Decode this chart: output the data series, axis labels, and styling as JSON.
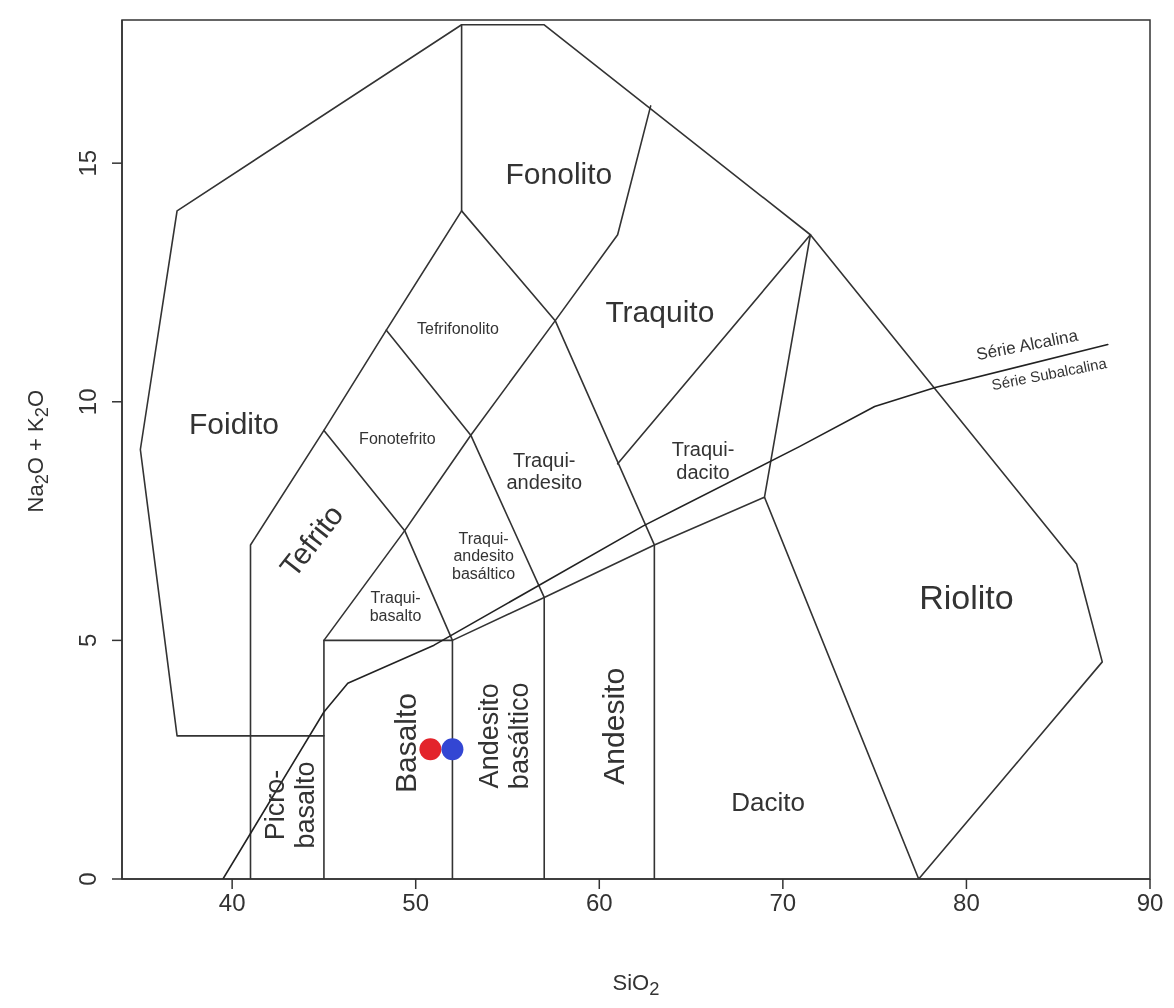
{
  "chart_data": {
    "type": "scatter",
    "xlabel": "SiO$_{2}$",
    "ylabel": "Na$_{2}$O + K$_{2}$O",
    "xlim": [
      34,
      90
    ],
    "ylim": [
      0,
      18
    ],
    "xticks": [
      40,
      50,
      60,
      70,
      80,
      90
    ],
    "yticks": [
      0,
      5,
      10,
      15
    ],
    "series": [
      {
        "type": "line",
        "color": "#333333",
        "x": [
          45,
          37,
          35,
          37,
          52.5,
          57,
          71.5,
          86,
          87.4,
          77.4
        ],
        "values": [
          3,
          3,
          9,
          14,
          17.9,
          17.9,
          13.5,
          6.6,
          4.55,
          0
        ]
      },
      {
        "type": "line",
        "color": "#333333",
        "x": [
          41,
          41,
          45,
          48.4,
          52.5,
          52.5
        ],
        "values": [
          0,
          7,
          9.4,
          11.5,
          14,
          17.9
        ]
      },
      {
        "type": "line",
        "color": "#333333",
        "x": [
          52.5,
          57.6,
          63,
          63
        ],
        "values": [
          14,
          11.7,
          7,
          0
        ]
      },
      {
        "type": "line",
        "color": "#333333",
        "x": [
          48.4,
          53,
          57,
          57
        ],
        "values": [
          11.5,
          9.3,
          5.9,
          0
        ]
      },
      {
        "type": "line",
        "color": "#333333",
        "x": [
          45,
          49.4,
          52,
          52
        ],
        "values": [
          9.4,
          7.3,
          5,
          0
        ]
      },
      {
        "type": "line",
        "color": "#333333",
        "x": [
          45,
          45,
          49.4,
          53,
          57.6,
          61,
          62.8
        ],
        "values": [
          0,
          5,
          7.3,
          9.3,
          11.7,
          13.5,
          16.2
        ]
      },
      {
        "type": "line",
        "color": "#333333",
        "x": [
          45,
          52,
          57,
          63,
          69,
          77.4
        ],
        "values": [
          5,
          5,
          5.9,
          7,
          8,
          0
        ]
      },
      {
        "type": "line",
        "color": "#333333",
        "x": [
          69,
          71.5
        ],
        "values": [
          8,
          13.5
        ]
      },
      {
        "type": "line",
        "color": "#333333",
        "x": [
          61,
          71.5
        ],
        "values": [
          8.7,
          13.5
        ]
      },
      {
        "type": "line",
        "color": "#222222",
        "x": [
          39.5,
          45,
          46.3,
          51,
          62.4,
          70.9,
          75,
          78.3,
          87.7
        ],
        "values": [
          0,
          3.5,
          4.1,
          4.9,
          7.4,
          9.06,
          9.9,
          10.3,
          11.2
        ]
      },
      {
        "color": "#e3242b",
        "marker": "circle",
        "x": [
          50.8
        ],
        "values": [
          2.72
        ]
      },
      {
        "color": "#3346d3",
        "marker": "circle",
        "x": [
          52
        ],
        "values": [
          2.72
        ]
      }
    ],
    "annotations": [
      "Fonolito",
      "Traquito",
      "Tefrifonolito",
      "Foidito",
      "Fonotefrito",
      "Traqui-\nandesito",
      "Traqui-\ndacito",
      "Tefrito",
      "Traqui-\nandesito\nbasáltico",
      "Traqui-\nbasalto",
      "Riolito",
      "Dacito",
      "Andesito",
      "Andesito\nbasáltico",
      "Basalto",
      "Picro-\nbasalto",
      "Série Alcalina",
      "Série Subalcalina"
    ]
  }
}
